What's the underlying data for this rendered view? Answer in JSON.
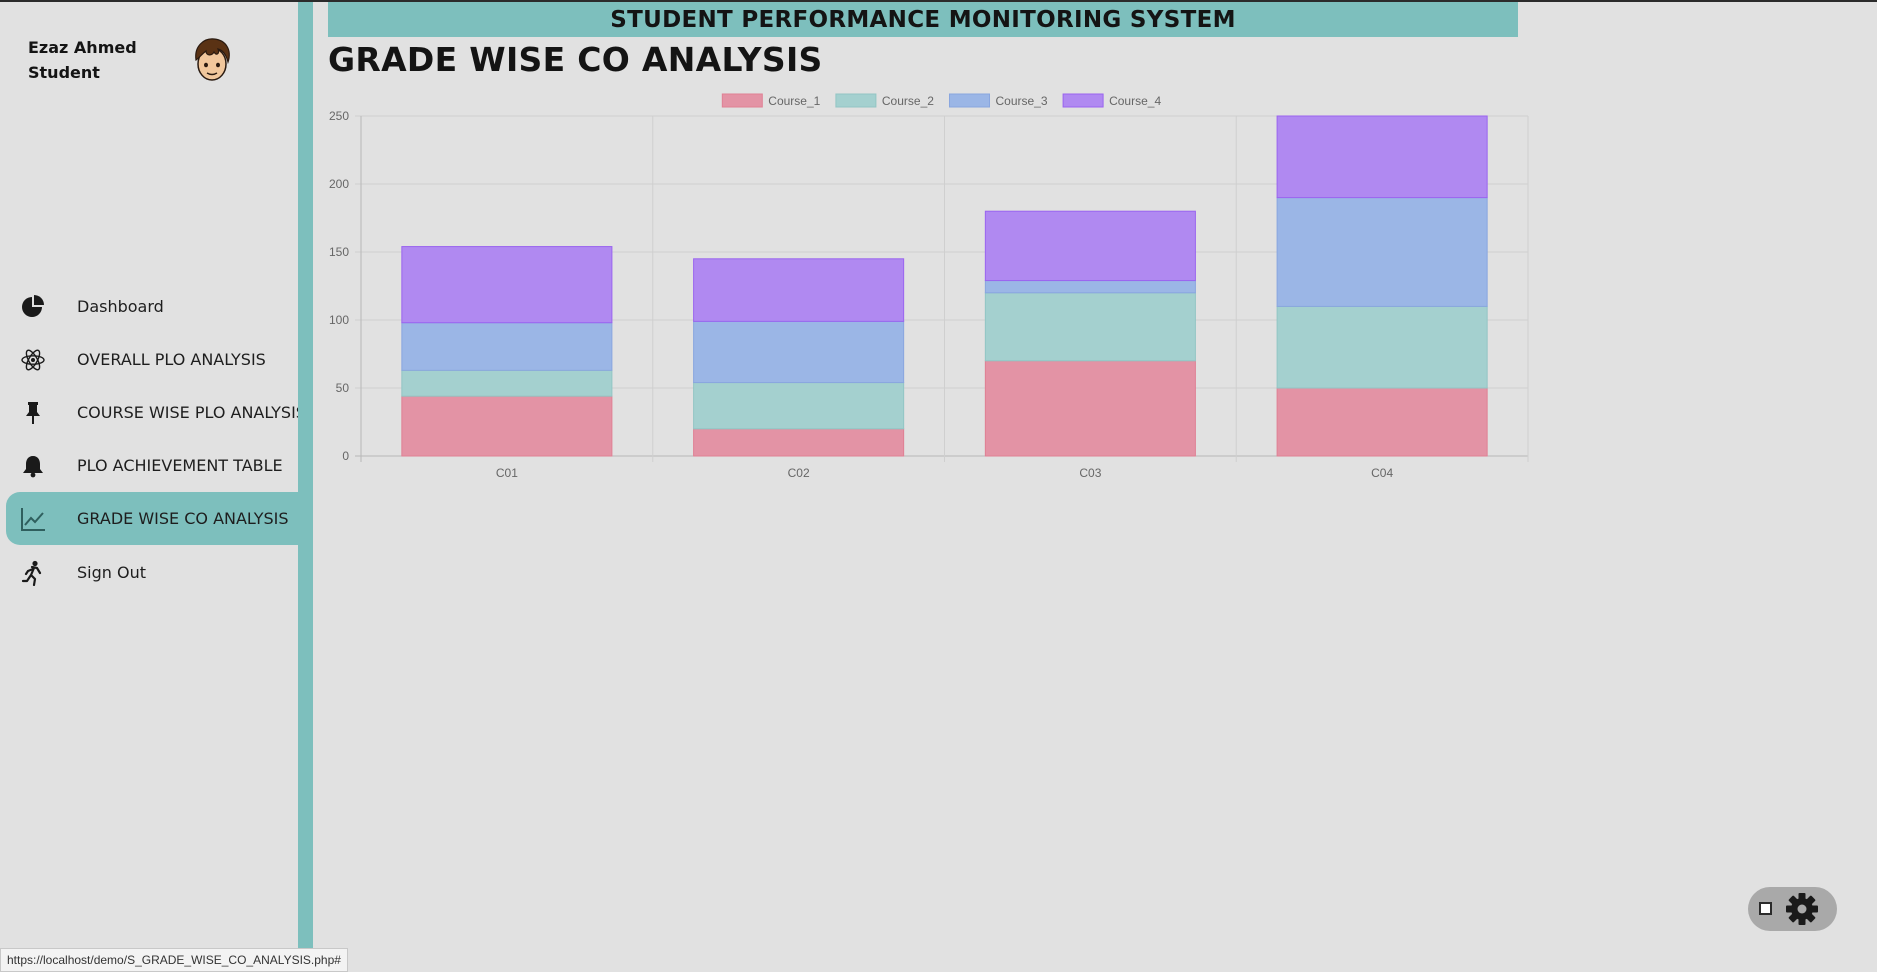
{
  "profile": {
    "name": "Ezaz Ahmed",
    "role": "Student"
  },
  "nav": {
    "items": [
      {
        "label": "Dashboard",
        "icon": "pie-chart-icon"
      },
      {
        "label": "OVERALL PLO ANALYSIS",
        "icon": "atom-icon"
      },
      {
        "label": "COURSE WISE PLO ANALYSIS",
        "icon": "pushpin-icon"
      },
      {
        "label": "PLO ACHIEVEMENT TABLE",
        "icon": "bell-icon"
      },
      {
        "label": "GRADE WISE CO ANALYSIS",
        "icon": "line-chart-icon",
        "active": true
      },
      {
        "label": "Sign Out",
        "icon": "running-person-icon"
      }
    ]
  },
  "header": {
    "banner": "STUDENT PERFORMANCE MONITORING SYSTEM",
    "page_title": "GRADE WISE CO ANALYSIS"
  },
  "chart_data": {
    "type": "bar",
    "stacked": true,
    "categories": [
      "C01",
      "C02",
      "C03",
      "C04"
    ],
    "series": [
      {
        "name": "Course_1",
        "values": [
          44,
          20,
          70,
          50
        ],
        "color": "#e393a5",
        "border": "#e08094"
      },
      {
        "name": "Course_2",
        "values": [
          19,
          34,
          50,
          60
        ],
        "color": "#a4d0cf",
        "border": "#92c5c4"
      },
      {
        "name": "Course_3",
        "values": [
          35,
          45,
          9,
          80
        ],
        "color": "#9bb6e6",
        "border": "#89a6df"
      },
      {
        "name": "Course_4",
        "values": [
          56,
          46,
          51,
          60
        ],
        "color": "#b089f1",
        "border": "#9a64ef"
      }
    ],
    "ylim": [
      0,
      250
    ],
    "yticks": [
      0,
      50,
      100,
      150,
      200,
      250
    ],
    "grid": true,
    "legend": "top-center"
  },
  "statusbar": {
    "url": "https://localhost/demo/S_GRADE_WISE_CO_ANALYSIS.php#"
  },
  "settings": {
    "icon": "gear-icon"
  }
}
